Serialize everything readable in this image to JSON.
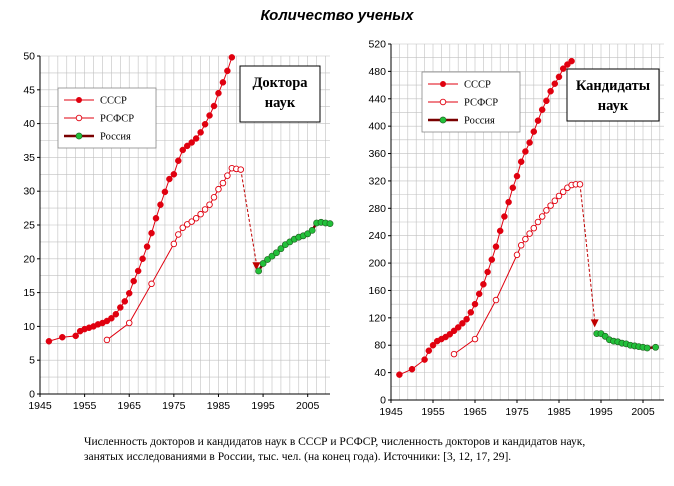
{
  "title": "Количество ученых",
  "caption": {
    "line1": "Численность докторов и кандидатов наук в СССР и РСФСР,  численность докторов и кандидатов наук,",
    "line2": "занятых исследованиями в России, тыс. чел. (на конец года). Источники: [3, 12, 17, 29]."
  },
  "colors": {
    "ussr": "#e0000f",
    "rsfsr": "#e0000f",
    "russia_fill": "#22c03a",
    "russia_line": "#7a0000",
    "arrow": "#c00000",
    "grid": "#c0c0c0"
  },
  "chart_data": [
    {
      "type": "line",
      "title": "Доктора наук",
      "xlim": [
        1945,
        2010
      ],
      "xticks": [
        1945,
        1955,
        1965,
        1975,
        1985,
        1995,
        2005
      ],
      "ylim": [
        0,
        50
      ],
      "yticks": [
        0,
        5,
        10,
        15,
        20,
        25,
        30,
        35,
        40,
        45,
        50
      ],
      "grid": true,
      "legend_position": "top-left",
      "series": [
        {
          "name": "СССР",
          "marker": "filled-circle",
          "x": [
            1947,
            1950,
            1953,
            1954,
            1955,
            1956,
            1957,
            1958,
            1959,
            1960,
            1961,
            1962,
            1963,
            1964,
            1965,
            1966,
            1967,
            1968,
            1969,
            1970,
            1971,
            1972,
            1973,
            1974,
            1975,
            1976,
            1977,
            1978,
            1979,
            1980,
            1981,
            1982,
            1983,
            1984,
            1985,
            1986,
            1987,
            1988
          ],
          "y": [
            7.8,
            8.4,
            8.6,
            9.3,
            9.6,
            9.8,
            10.0,
            10.3,
            10.5,
            10.8,
            11.2,
            11.8,
            12.8,
            13.7,
            14.9,
            16.7,
            18.2,
            20.0,
            21.8,
            23.8,
            26.0,
            28.0,
            29.9,
            31.8,
            32.5,
            34.5,
            36.1,
            36.7,
            37.2,
            37.8,
            38.7,
            39.9,
            41.2,
            42.6,
            44.5,
            46.1,
            47.8,
            49.8
          ]
        },
        {
          "name": "РСФСР",
          "marker": "open-circle",
          "x": [
            1960,
            1965,
            1970,
            1975,
            1976,
            1977,
            1978,
            1979,
            1980,
            1981,
            1982,
            1983,
            1984,
            1985,
            1986,
            1987,
            1988,
            1989,
            1990
          ],
          "y": [
            8.0,
            10.5,
            16.3,
            22.2,
            23.6,
            24.6,
            25.1,
            25.5,
            26.0,
            26.6,
            27.3,
            28.0,
            29.1,
            30.3,
            31.2,
            32.3,
            33.4,
            33.3,
            33.2
          ]
        },
        {
          "name": "Россия",
          "marker": "green-circle",
          "x": [
            1994,
            1995,
            1996,
            1997,
            1998,
            1999,
            2000,
            2001,
            2002,
            2003,
            2004,
            2005,
            2006,
            2007,
            2008,
            2009,
            2010
          ],
          "y": [
            18.2,
            19.3,
            19.9,
            20.4,
            20.9,
            21.5,
            22.1,
            22.5,
            22.9,
            23.2,
            23.4,
            23.7,
            24.2,
            25.3,
            25.4,
            25.3,
            25.2
          ]
        }
      ],
      "arrow": {
        "from": [
          1990,
          33.2
        ],
        "to": [
          1993.5,
          18.3
        ]
      }
    },
    {
      "type": "line",
      "title": "Кандидаты наук",
      "xlim": [
        1945,
        2010
      ],
      "xticks": [
        1945,
        1955,
        1965,
        1975,
        1985,
        1995,
        2005
      ],
      "ylim": [
        0,
        520
      ],
      "yticks": [
        0,
        40,
        80,
        120,
        160,
        200,
        240,
        280,
        320,
        360,
        400,
        440,
        480,
        520
      ],
      "grid": true,
      "legend_position": "top-left",
      "series": [
        {
          "name": "СССР",
          "marker": "filled-circle",
          "x": [
            1947,
            1950,
            1953,
            1954,
            1955,
            1956,
            1957,
            1958,
            1959,
            1960,
            1961,
            1962,
            1963,
            1964,
            1965,
            1966,
            1967,
            1968,
            1969,
            1970,
            1971,
            1972,
            1973,
            1974,
            1975,
            1976,
            1977,
            1978,
            1979,
            1980,
            1981,
            1982,
            1983,
            1984,
            1985,
            1986,
            1987,
            1988
          ],
          "y": [
            37,
            45,
            59,
            72,
            80,
            86,
            89,
            92,
            96,
            101,
            106,
            112,
            118,
            128,
            140,
            155,
            169,
            187,
            205,
            224,
            247,
            268,
            289,
            310,
            327,
            348,
            363,
            376,
            392,
            408,
            424,
            437,
            451,
            462,
            472,
            484,
            490,
            495
          ]
        },
        {
          "name": "РСФСР",
          "marker": "open-circle",
          "x": [
            1960,
            1965,
            1970,
            1975,
            1976,
            1977,
            1978,
            1979,
            1980,
            1981,
            1982,
            1983,
            1984,
            1985,
            1986,
            1987,
            1988,
            1989,
            1990
          ],
          "y": [
            67,
            89,
            146,
            212,
            226,
            235,
            243,
            251,
            260,
            268,
            277,
            284,
            291,
            298,
            304,
            310,
            314,
            315,
            315
          ]
        },
        {
          "name": "Россия",
          "marker": "green-circle",
          "x": [
            1994,
            1995,
            1996,
            1997,
            1998,
            1999,
            2000,
            2001,
            2002,
            2003,
            2004,
            2005,
            2006,
            2008
          ],
          "y": [
            97,
            97,
            93,
            88,
            86,
            85,
            83,
            82,
            80,
            79,
            78,
            77,
            76,
            77
          ]
        }
      ],
      "arrow": {
        "from": [
          1990,
          315
        ],
        "to": [
          1993.5,
          106
        ]
      }
    }
  ],
  "panels": [
    {
      "label_line1": "Доктора",
      "label_line2": "наук"
    },
    {
      "label_line1": "Кандидаты",
      "label_line2": "наук"
    }
  ]
}
